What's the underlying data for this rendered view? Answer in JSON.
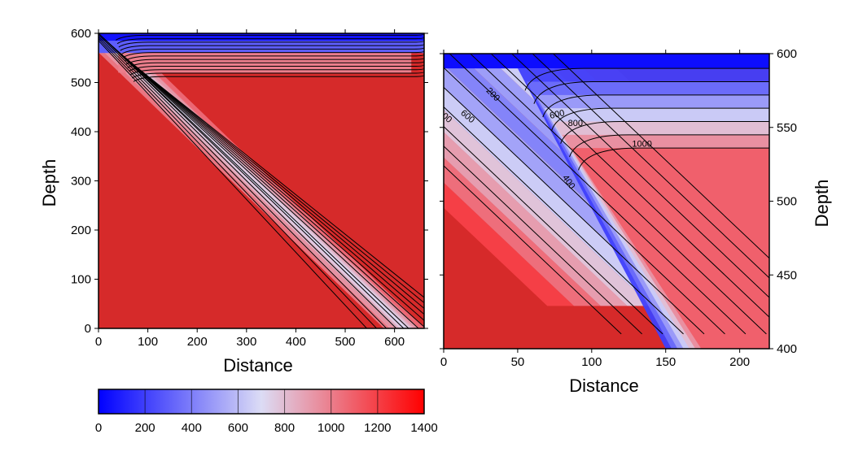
{
  "colors": {
    "colormap": [
      "#0000ff",
      "#dcdcf5",
      "#ff0000"
    ],
    "colormap_stops": [
      0,
      700,
      1400
    ],
    "plot_red": "#d62a2a",
    "plot_blue": "#0b0bff",
    "contour": "#000000"
  },
  "chart_data": [
    {
      "type": "heatmap",
      "xlabel": "Distance",
      "ylabel": "Depth",
      "xlim": [
        0,
        660
      ],
      "ylim": [
        0,
        600
      ],
      "x_ticks": [
        0,
        100,
        200,
        300,
        400,
        500,
        600
      ],
      "y_ticks": [
        0,
        100,
        200,
        300,
        400,
        500,
        600
      ],
      "y_axis_side": "left",
      "contour_levels": [
        100,
        200,
        300,
        400,
        500,
        600,
        700,
        800,
        900,
        1000,
        1100,
        1200,
        1300
      ],
      "contour_labels": []
    },
    {
      "type": "heatmap",
      "xlabel": "Distance",
      "ylabel": "Depth",
      "xlim": [
        0,
        220
      ],
      "ylim": [
        400,
        600
      ],
      "x_ticks": [
        0,
        50,
        100,
        150,
        200
      ],
      "y_ticks": [
        400,
        450,
        500,
        550,
        600
      ],
      "y_axis_side": "right",
      "contour_levels": [
        100,
        200,
        300,
        400,
        500,
        600,
        700,
        800,
        900,
        1000,
        1100
      ],
      "contour_labels": [
        {
          "text": "200",
          "x": 32,
          "y": 571,
          "rotation": 45
        },
        {
          "text": "600",
          "x": 15,
          "y": 556,
          "rotation": 40
        },
        {
          "text": "00",
          "x": 1,
          "y": 555,
          "rotation": 40
        },
        {
          "text": "600",
          "x": 77,
          "y": 557,
          "rotation": -12
        },
        {
          "text": "800",
          "x": 89,
          "y": 551,
          "rotation": 0
        },
        {
          "text": "1000",
          "x": 134,
          "y": 537,
          "rotation": 0
        },
        {
          "text": "400",
          "x": 83,
          "y": 512,
          "rotation": 55
        }
      ]
    },
    {
      "type": "heatmap",
      "role": "colorbar",
      "range": [
        0,
        1400
      ],
      "ticks": [
        0,
        200,
        400,
        600,
        800,
        1000,
        1200,
        1400
      ]
    }
  ]
}
